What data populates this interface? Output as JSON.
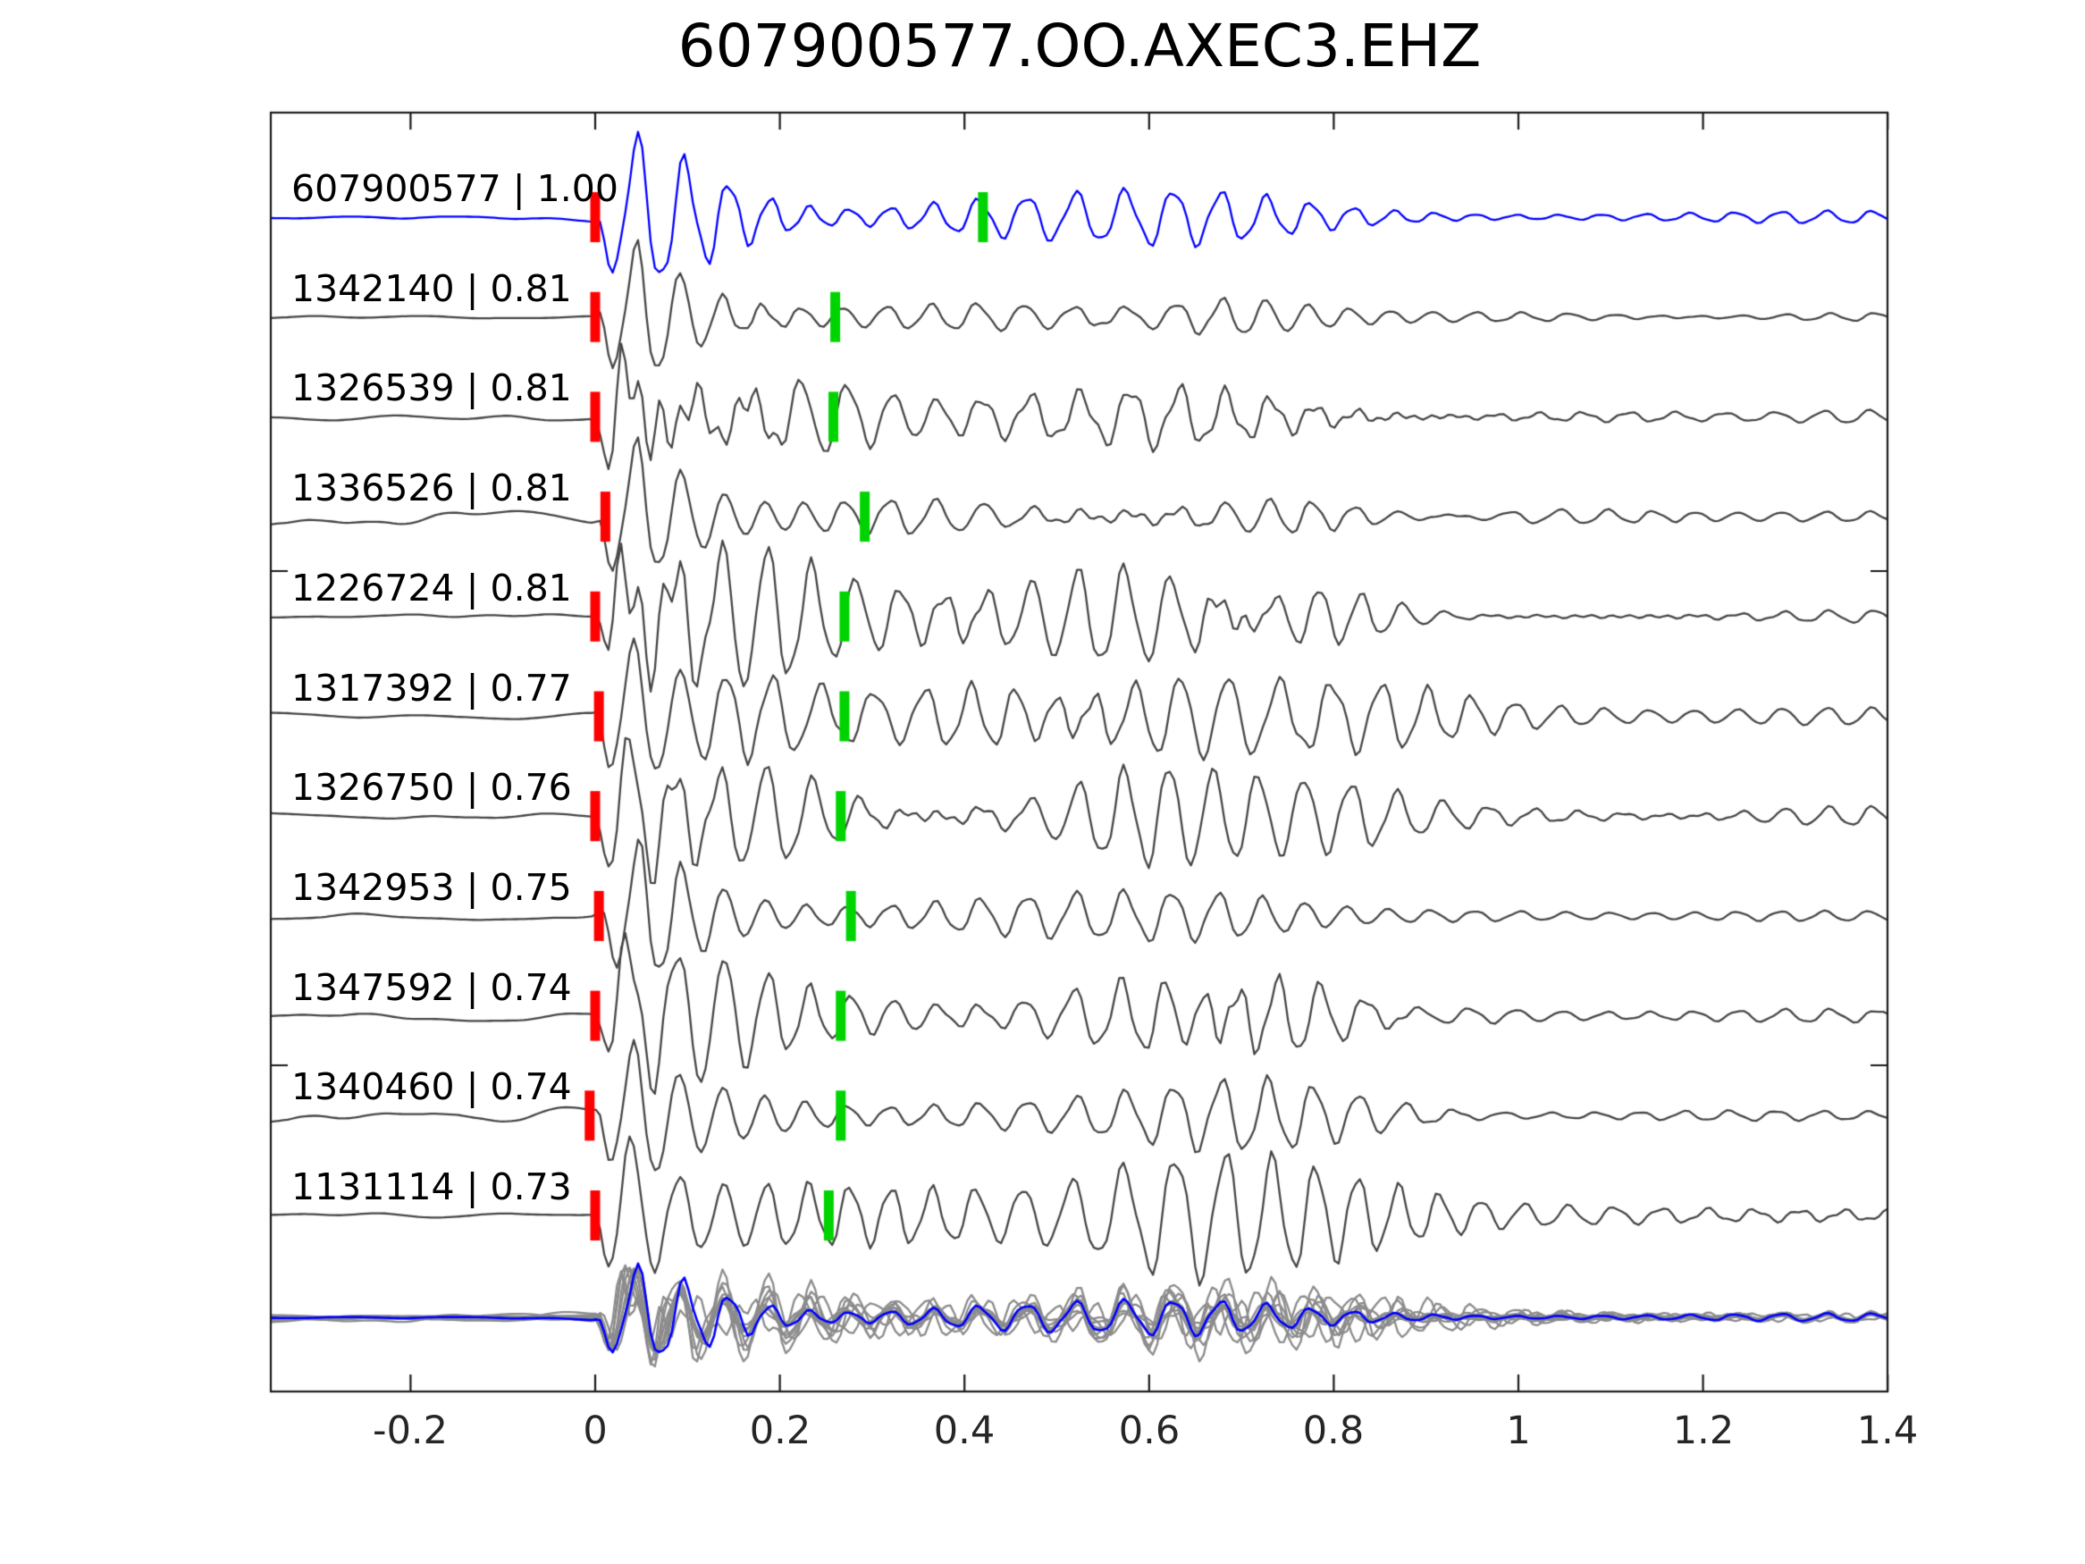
{
  "title": "607900577.OO.AXEC3.EHZ",
  "colors": {
    "background": "#ffffff",
    "axis": "#1a1a1a",
    "title_text": "#000000",
    "label_text": "#000000",
    "tick_text": "#262626",
    "template_trace": "#0000ff",
    "detection_trace": "#464646",
    "overlay_gray": "#8c8c8c",
    "pick_red": "#ff0000",
    "pick_green": "#00d400"
  },
  "axis": {
    "x_min": -0.351,
    "x_max": 1.4,
    "x_ticks": [
      {
        "value": -0.2,
        "label": "-0.2"
      },
      {
        "value": 0,
        "label": "0"
      },
      {
        "value": 0.2,
        "label": "0.2"
      },
      {
        "value": 0.4,
        "label": "0.4"
      },
      {
        "value": 0.6,
        "label": "0.6"
      },
      {
        "value": 0.8,
        "label": "0.8"
      },
      {
        "value": 1,
        "label": "1"
      },
      {
        "value": 1.2,
        "label": "1.2"
      },
      {
        "value": 1.4,
        "label": "1.4"
      }
    ]
  },
  "chart_data": {
    "type": "line",
    "title": "607900577.OO.AXEC3.EHZ",
    "xlabel": "",
    "ylabel": "",
    "x_range": [
      -0.351,
      1.4
    ],
    "grid": false,
    "legend": "none",
    "description_of_rows": "template waveform (blue) + 10 detected event waveforms (gray) with cross-correlation values; red mark = reference pick at t=0, green mark = secondary pick; bottom row = aligned overlay stack of all traces (gray) with template in blue",
    "traces": [
      {
        "id": "607900577",
        "correlation": 1.0,
        "label": "607900577 | 1.00",
        "role": "template",
        "red_pick": 0.0,
        "green_pick": 0.42,
        "synth": {
          "seed": 101,
          "freq": 20.8,
          "amp": 95,
          "bump": 0.22,
          "bump_t": 0.66,
          "pre_noise": 5
        }
      },
      {
        "id": "1342140",
        "correlation": 0.81,
        "label": "1342140 | 0.81",
        "role": "detection",
        "red_pick": 0.0,
        "green_pick": 0.26,
        "synth": {
          "seed": 202,
          "freq": 21.4,
          "amp": 85,
          "bump": 0.18,
          "bump_t": 0.62,
          "pre_noise": 3.5
        }
      },
      {
        "id": "1326539",
        "correlation": 0.81,
        "label": "1326539 | 0.81",
        "role": "detection",
        "red_pick": 0.0,
        "green_pick": 0.258,
        "synth": {
          "seed": 303,
          "freq": 20.1,
          "amp": 82,
          "bump": 0.32,
          "bump_t": 0.7,
          "pre_noise": 6
        }
      },
      {
        "id": "1336526",
        "correlation": 0.81,
        "label": "1336526 | 0.81",
        "role": "detection",
        "red_pick": 0.011,
        "green_pick": 0.292,
        "synth": {
          "seed": 404,
          "freq": 20.0,
          "amp": 85,
          "bump": 0.26,
          "bump_t": 0.68,
          "pre_noise": 11
        }
      },
      {
        "id": "1226724",
        "correlation": 0.81,
        "label": "1226724 | 0.81",
        "role": "detection",
        "red_pick": 0.0,
        "green_pick": 0.27,
        "synth": {
          "seed": 505,
          "freq": 21.0,
          "amp": 85,
          "bump": 0.3,
          "bump_t": 0.72,
          "pre_noise": 5
        }
      },
      {
        "id": "1317392",
        "correlation": 0.77,
        "label": "1317392 | 0.77",
        "role": "detection",
        "red_pick": 0.004,
        "green_pick": 0.27,
        "synth": {
          "seed": 606,
          "freq": 19.8,
          "amp": 87,
          "bump": 0.48,
          "bump_t": 0.71,
          "pre_noise": 5
        }
      },
      {
        "id": "1326750",
        "correlation": 0.76,
        "label": "1326750 | 0.76",
        "role": "detection",
        "red_pick": 0.0,
        "green_pick": 0.266,
        "synth": {
          "seed": 707,
          "freq": 20.5,
          "amp": 88,
          "bump": 0.5,
          "bump_t": 0.7,
          "pre_noise": 5
        }
      },
      {
        "id": "1342953",
        "correlation": 0.75,
        "label": "1342953 | 0.75",
        "role": "detection",
        "red_pick": 0.004,
        "green_pick": 0.277,
        "synth": {
          "seed": 808,
          "freq": 20.9,
          "amp": 84,
          "bump": 0.28,
          "bump_t": 0.65,
          "pre_noise": 6
        }
      },
      {
        "id": "1347592",
        "correlation": 0.74,
        "label": "1347592 | 0.74",
        "role": "detection",
        "red_pick": 0.0,
        "green_pick": 0.266,
        "synth": {
          "seed": 909,
          "freq": 19.6,
          "amp": 90,
          "bump": 0.46,
          "bump_t": 0.7,
          "pre_noise": 6
        }
      },
      {
        "id": "1340460",
        "correlation": 0.74,
        "label": "1340460 | 0.74",
        "role": "detection",
        "red_pick": -0.006,
        "green_pick": 0.266,
        "synth": {
          "seed": 1010,
          "freq": 20.3,
          "amp": 85,
          "bump": 0.36,
          "bump_t": 0.74,
          "pre_noise": 13
        }
      },
      {
        "id": "1131114",
        "correlation": 0.73,
        "label": "1131114 | 0.73",
        "role": "detection",
        "red_pick": 0.0,
        "green_pick": 0.253,
        "synth": {
          "seed": 1111,
          "freq": 20.6,
          "amp": 88,
          "bump": 0.55,
          "bump_t": 0.7,
          "pre_noise": 5
        }
      }
    ],
    "overlay_stack": {
      "present": true,
      "scale": 0.63
    }
  }
}
